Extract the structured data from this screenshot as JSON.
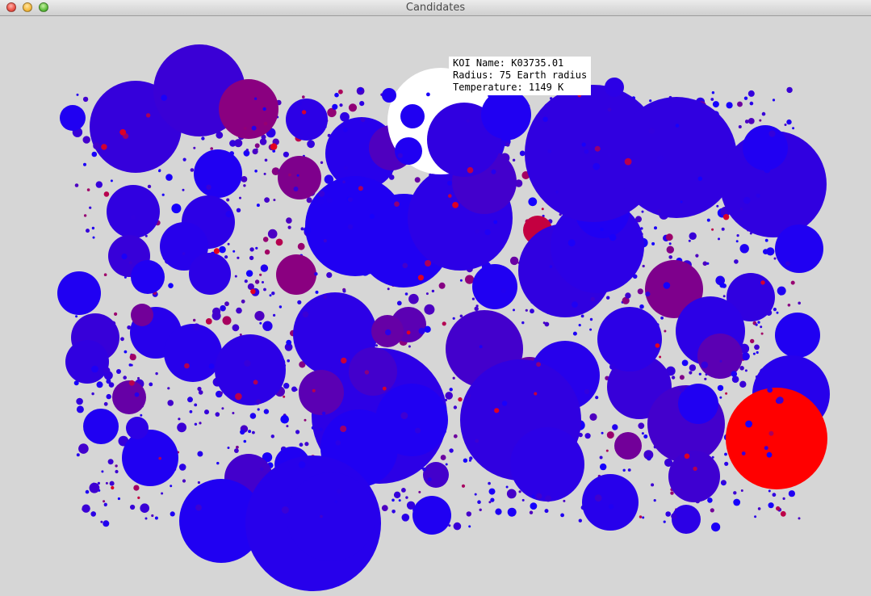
{
  "window": {
    "title": "Candidates"
  },
  "colors": {
    "cold": "#1400ff",
    "hot": "#ff0000",
    "selected": "#ffffff",
    "background": "#d6d6d6"
  },
  "tooltip": {
    "name_line": "KOI Name: K03735.01",
    "radius_line": "Radius: 75 Earth radius",
    "temperature_line": "Temperature: 1149 K"
  }
}
